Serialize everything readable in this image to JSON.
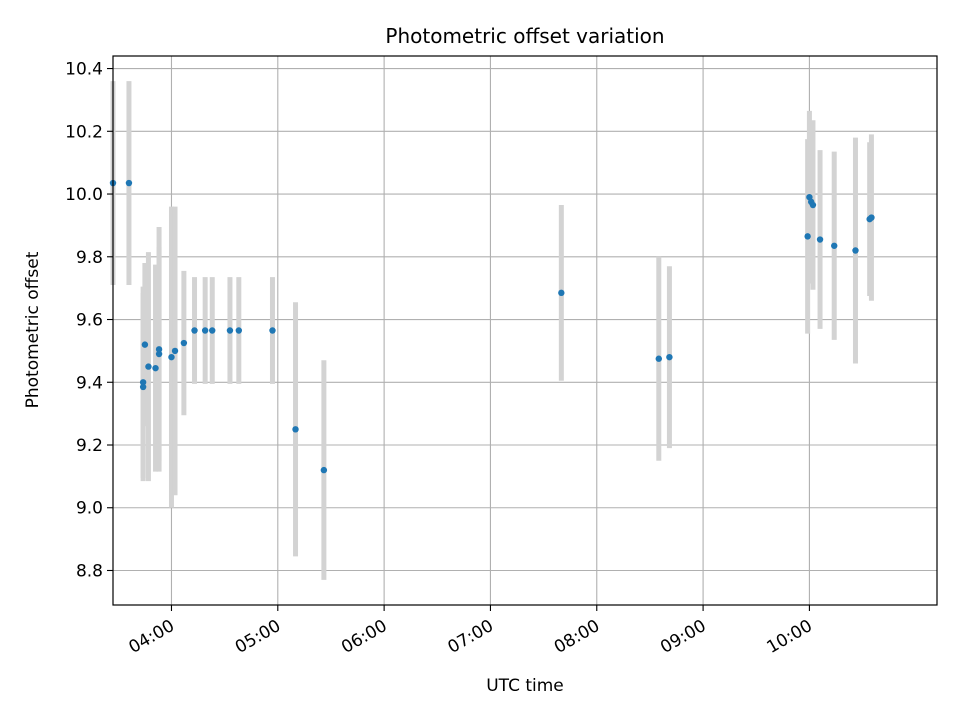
{
  "chart_data": {
    "type": "scatter",
    "title": "Photometric offset variation",
    "xlabel": "UTC time",
    "ylabel": "Photometric offset",
    "grid": true,
    "legend": "none",
    "xlim": [
      "03:27",
      "11:12"
    ],
    "ylim": [
      8.69,
      10.44
    ],
    "x_ticks": [
      "04:00",
      "05:00",
      "06:00",
      "07:00",
      "08:00",
      "09:00",
      "10:00"
    ],
    "y_ticks": [
      "8.8",
      "9.0",
      "9.2",
      "9.4",
      "9.6",
      "9.8",
      "10.0",
      "10.2",
      "10.4"
    ],
    "colors": {
      "point": "#1f77b4",
      "errorbar": "#d3d3d3",
      "grid": "#b0b0b0"
    },
    "series": [
      {
        "points": [
          {
            "t": "03:27",
            "y": 10.035,
            "err": 0.325
          },
          {
            "t": "03:36",
            "y": 10.035,
            "err": 0.325
          },
          {
            "t": "03:44",
            "y": 9.4,
            "err": 0.305
          },
          {
            "t": "03:44",
            "y": 9.385,
            "err": 0.3
          },
          {
            "t": "03:45",
            "y": 9.52,
            "err": 0.26
          },
          {
            "t": "03:47",
            "y": 9.45,
            "err": 0.365
          },
          {
            "t": "03:51",
            "y": 9.445,
            "err": 0.33
          },
          {
            "t": "03:53",
            "y": 9.49,
            "err": 0.34
          },
          {
            "t": "03:53",
            "y": 9.505,
            "err": 0.39
          },
          {
            "t": "04:00",
            "y": 9.48,
            "err": 0.48
          },
          {
            "t": "04:02",
            "y": 9.5,
            "err": 0.46
          },
          {
            "t": "04:07",
            "y": 9.525,
            "err": 0.23
          },
          {
            "t": "04:13",
            "y": 9.565,
            "err": 0.17
          },
          {
            "t": "04:19",
            "y": 9.565,
            "err": 0.17
          },
          {
            "t": "04:23",
            "y": 9.565,
            "err": 0.17
          },
          {
            "t": "04:33",
            "y": 9.565,
            "err": 0.17
          },
          {
            "t": "04:38",
            "y": 9.565,
            "err": 0.17
          },
          {
            "t": "04:57",
            "y": 9.565,
            "err": 0.17
          },
          {
            "t": "05:10",
            "y": 9.25,
            "err": 0.405
          },
          {
            "t": "05:26",
            "y": 9.12,
            "err": 0.35
          },
          {
            "t": "07:40",
            "y": 9.685,
            "err": 0.28
          },
          {
            "t": "08:35",
            "y": 9.475,
            "err": 0.325
          },
          {
            "t": "08:41",
            "y": 9.48,
            "err": 0.29
          },
          {
            "t": "09:59",
            "y": 9.865,
            "err": 0.31
          },
          {
            "t": "10:00",
            "y": 9.99,
            "err": 0.275
          },
          {
            "t": "10:01",
            "y": 9.975,
            "err": 0.255
          },
          {
            "t": "10:02",
            "y": 9.965,
            "err": 0.27
          },
          {
            "t": "10:06",
            "y": 9.855,
            "err": 0.285
          },
          {
            "t": "10:14",
            "y": 9.835,
            "err": 0.3
          },
          {
            "t": "10:26",
            "y": 9.82,
            "err": 0.36
          },
          {
            "t": "10:34",
            "y": 9.92,
            "err": 0.245
          },
          {
            "t": "10:35",
            "y": 9.925,
            "err": 0.265
          }
        ]
      }
    ]
  }
}
